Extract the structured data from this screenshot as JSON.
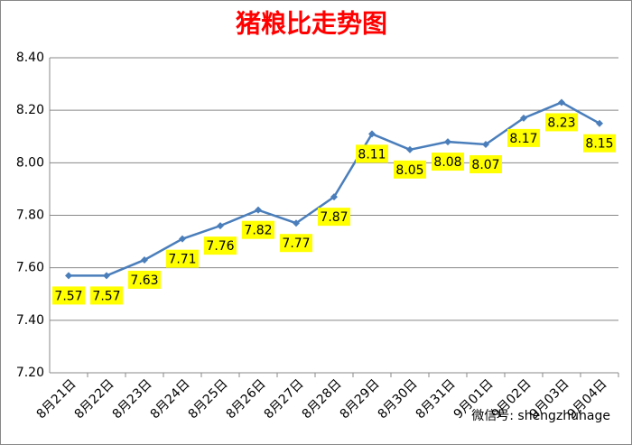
{
  "chart_data": {
    "type": "line",
    "title": "猪粮比走势图",
    "categories": [
      "8月21日",
      "8月22日",
      "8月23日",
      "8月24日",
      "8月25日",
      "8月26日",
      "8月27日",
      "8月28日",
      "8月29日",
      "8月30日",
      "8月31日",
      "9月01日",
      "9月02日",
      "9月03日",
      "9月04日"
    ],
    "series": [
      {
        "name": "猪粮比",
        "color": "#4a7ebb",
        "values": [
          7.57,
          7.57,
          7.63,
          7.71,
          7.76,
          7.82,
          7.77,
          7.87,
          8.11,
          8.05,
          8.08,
          8.07,
          8.17,
          8.23,
          8.15
        ]
      }
    ],
    "ylim": [
      7.2,
      8.4
    ],
    "yticks": [
      {
        "value": 7.2,
        "label": "7.20"
      },
      {
        "value": 7.4,
        "label": "7.40"
      },
      {
        "value": 7.6,
        "label": "7.60"
      },
      {
        "value": 7.8,
        "label": "7.80"
      },
      {
        "value": 8.0,
        "label": "8.00"
      },
      {
        "value": 8.2,
        "label": "8.20"
      },
      {
        "value": 8.4,
        "label": "8.40"
      }
    ],
    "grid": true,
    "label_background": "#ffff00",
    "watermark": "微信号: shengzhuhage"
  }
}
